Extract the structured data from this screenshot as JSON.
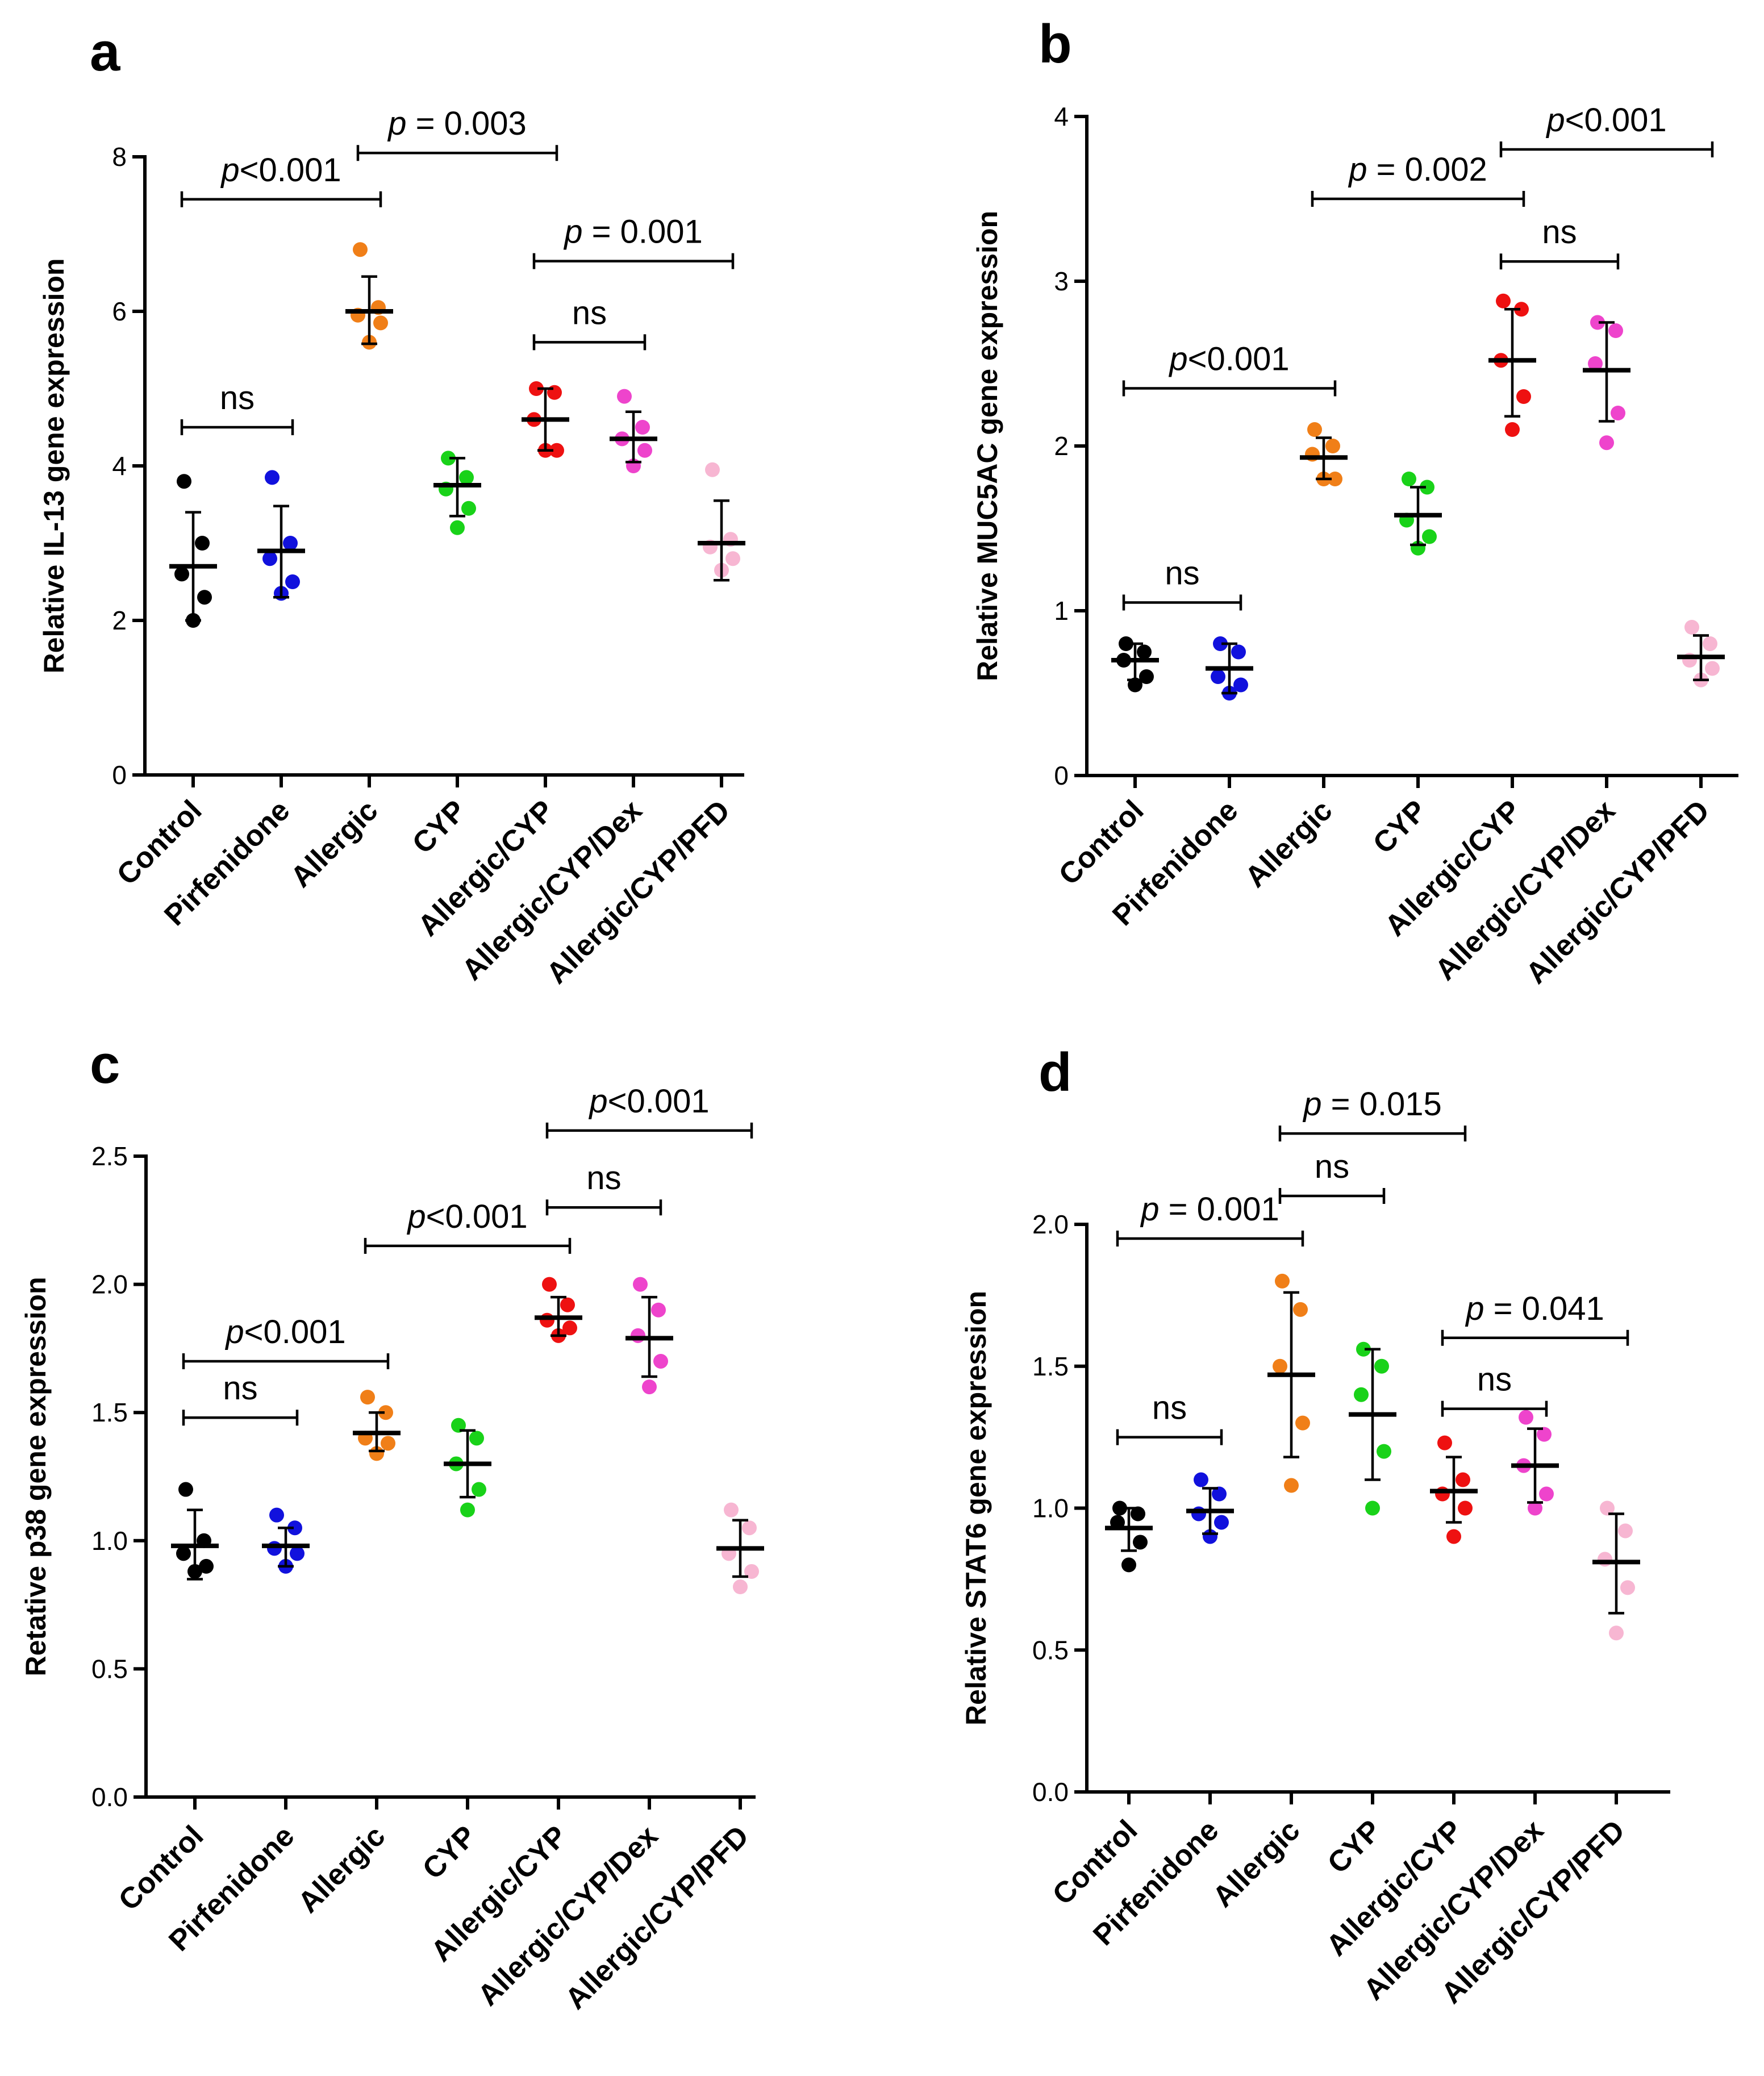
{
  "categories": [
    "Control",
    "Pirfenidone",
    "Allergic",
    "CYP",
    "Allergic/CYP",
    "Allergic/CYP/Dex",
    "Allergic/CYP/PFD"
  ],
  "group_colors": [
    "#000000",
    "#1111dd",
    "#f07f18",
    "#19d219",
    "#ee1111",
    "#ee44cc",
    "#f7b6d2"
  ],
  "chart_data": [
    {
      "type": "scatter",
      "panel": "a",
      "ylabel": "Relative IL-13 gene expression",
      "ylim": [
        0,
        8
      ],
      "yticks": [
        0,
        2,
        4,
        6,
        8
      ],
      "ytick_labels": [
        "0",
        "2",
        "4",
        "6",
        "8"
      ],
      "categories": [
        "Control",
        "Pirfenidone",
        "Allergic",
        "CYP",
        "Allergic/CYP",
        "Allergic/CYP/Dex",
        "Allergic/CYP/PFD"
      ],
      "groups": [
        {
          "points": [
            3.8,
            3.0,
            2.6,
            2.3,
            2.0
          ],
          "mean": 2.7,
          "sd_low": 2.0,
          "sd_high": 3.4
        },
        {
          "points": [
            3.85,
            3.0,
            2.8,
            2.5,
            2.35
          ],
          "mean": 2.9,
          "sd_low": 2.3,
          "sd_high": 3.48
        },
        {
          "points": [
            6.8,
            6.05,
            5.95,
            5.85,
            5.6
          ],
          "mean": 6.0,
          "sd_low": 5.58,
          "sd_high": 6.45
        },
        {
          "points": [
            4.1,
            3.85,
            3.7,
            3.45,
            3.2
          ],
          "mean": 3.75,
          "sd_low": 3.35,
          "sd_high": 4.1
        },
        {
          "points": [
            5.0,
            4.95,
            4.6,
            4.2,
            4.2
          ],
          "mean": 4.6,
          "sd_low": 4.2,
          "sd_high": 5.0
        },
        {
          "points": [
            4.9,
            4.5,
            4.35,
            4.2,
            4.0
          ],
          "mean": 4.35,
          "sd_low": 4.05,
          "sd_high": 4.7
        },
        {
          "points": [
            3.95,
            3.05,
            2.95,
            2.8,
            2.65
          ],
          "mean": 3.0,
          "sd_low": 2.52,
          "sd_high": 3.55
        }
      ],
      "annotations": [
        {
          "from": 0,
          "to": 2,
          "y": 7.45,
          "prefix": "p",
          "text": "<0.001"
        },
        {
          "from": 2,
          "to": 4,
          "y": 8.05,
          "prefix": "p",
          "text": " = 0.003"
        },
        {
          "from": 0,
          "to": 1,
          "y": 4.5,
          "prefix": "",
          "text": "ns"
        },
        {
          "from": 4,
          "to": 6,
          "y": 6.65,
          "prefix": "p",
          "text": " = 0.001"
        },
        {
          "from": 4,
          "to": 5,
          "y": 5.6,
          "prefix": "",
          "text": "ns"
        }
      ]
    },
    {
      "type": "scatter",
      "panel": "b",
      "ylabel": "Relative MUC5AC gene expression",
      "ylim": [
        0,
        4
      ],
      "yticks": [
        0,
        1,
        2,
        3,
        4
      ],
      "ytick_labels": [
        "0",
        "1",
        "2",
        "3",
        "4"
      ],
      "categories": [
        "Control",
        "Pirfenidone",
        "Allergic",
        "CYP",
        "Allergic/CYP",
        "Allergic/CYP/Dex",
        "Allergic/CYP/PFD"
      ],
      "groups": [
        {
          "points": [
            0.8,
            0.75,
            0.7,
            0.6,
            0.55
          ],
          "mean": 0.7,
          "sd_low": 0.58,
          "sd_high": 0.8
        },
        {
          "points": [
            0.8,
            0.75,
            0.6,
            0.55,
            0.5
          ],
          "mean": 0.65,
          "sd_low": 0.5,
          "sd_high": 0.8
        },
        {
          "points": [
            2.1,
            2.0,
            1.95,
            1.8,
            1.8
          ],
          "mean": 1.93,
          "sd_low": 1.8,
          "sd_high": 2.05
        },
        {
          "points": [
            1.8,
            1.75,
            1.55,
            1.45,
            1.38
          ],
          "mean": 1.58,
          "sd_low": 1.4,
          "sd_high": 1.75
        },
        {
          "points": [
            2.88,
            2.83,
            2.52,
            2.3,
            2.1
          ],
          "mean": 2.52,
          "sd_low": 2.18,
          "sd_high": 2.83
        },
        {
          "points": [
            2.75,
            2.7,
            2.5,
            2.2,
            2.02
          ],
          "mean": 2.46,
          "sd_low": 2.15,
          "sd_high": 2.75
        },
        {
          "points": [
            0.9,
            0.8,
            0.7,
            0.65,
            0.58
          ],
          "mean": 0.72,
          "sd_low": 0.58,
          "sd_high": 0.85
        }
      ],
      "annotations": [
        {
          "from": 0,
          "to": 2,
          "y": 2.35,
          "prefix": "p",
          "text": "<0.001"
        },
        {
          "from": 0,
          "to": 1,
          "y": 1.05,
          "prefix": "",
          "text": "ns"
        },
        {
          "from": 2,
          "to": 4,
          "y": 3.5,
          "prefix": "p",
          "text": " = 0.002"
        },
        {
          "from": 4,
          "to": 5,
          "y": 3.12,
          "prefix": "",
          "text": "ns"
        },
        {
          "from": 4,
          "to": 6,
          "y": 3.8,
          "prefix": "p",
          "text": "<0.001"
        }
      ]
    },
    {
      "type": "scatter",
      "panel": "c",
      "ylabel": "Retative p38 gene expression",
      "ylim": [
        0,
        2.5
      ],
      "yticks": [
        0,
        0.5,
        1,
        1.5,
        2,
        2.5
      ],
      "ytick_labels": [
        "0.0",
        "0.5",
        "1.0",
        "1.5",
        "2.0",
        "2.5"
      ],
      "categories": [
        "Control",
        "Pirfenidone",
        "Allergic",
        "CYP",
        "Allergic/CYP",
        "Allergic/CYP/Dex",
        "Allergic/CYP/PFD"
      ],
      "groups": [
        {
          "points": [
            1.2,
            1.0,
            0.95,
            0.9,
            0.88
          ],
          "mean": 0.98,
          "sd_low": 0.85,
          "sd_high": 1.12
        },
        {
          "points": [
            1.1,
            1.05,
            0.97,
            0.95,
            0.9
          ],
          "mean": 0.98,
          "sd_low": 0.9,
          "sd_high": 1.05
        },
        {
          "points": [
            1.56,
            1.5,
            1.4,
            1.38,
            1.34
          ],
          "mean": 1.42,
          "sd_low": 1.35,
          "sd_high": 1.5
        },
        {
          "points": [
            1.45,
            1.4,
            1.3,
            1.2,
            1.12
          ],
          "mean": 1.3,
          "sd_low": 1.17,
          "sd_high": 1.43
        },
        {
          "points": [
            2.0,
            1.92,
            1.86,
            1.83,
            1.8
          ],
          "mean": 1.87,
          "sd_low": 1.8,
          "sd_high": 1.95
        },
        {
          "points": [
            2.0,
            1.9,
            1.8,
            1.7,
            1.6
          ],
          "mean": 1.79,
          "sd_low": 1.64,
          "sd_high": 1.95
        },
        {
          "points": [
            1.12,
            1.05,
            0.95,
            0.88,
            0.82
          ],
          "mean": 0.97,
          "sd_low": 0.86,
          "sd_high": 1.08
        }
      ],
      "annotations": [
        {
          "from": 0,
          "to": 2,
          "y": 1.7,
          "prefix": "p",
          "text": "<0.001"
        },
        {
          "from": 0,
          "to": 1,
          "y": 1.48,
          "prefix": "",
          "text": "ns"
        },
        {
          "from": 2,
          "to": 4,
          "y": 2.15,
          "prefix": "p",
          "text": "<0.001"
        },
        {
          "from": 4,
          "to": 5,
          "y": 2.3,
          "prefix": "",
          "text": "ns"
        },
        {
          "from": 4,
          "to": 6,
          "y": 2.6,
          "prefix": "p",
          "text": "<0.001"
        }
      ]
    },
    {
      "type": "scatter",
      "panel": "d",
      "ylabel": "Relative STAT6 gene expression",
      "ylim": [
        0,
        2
      ],
      "yticks": [
        0,
        0.5,
        1,
        1.5,
        2
      ],
      "ytick_labels": [
        "0.0",
        "0.5",
        "1.0",
        "1.5",
        "2.0"
      ],
      "categories": [
        "Control",
        "Pirfenidone",
        "Allergic",
        "CYP",
        "Allergic/CYP",
        "Allergic/CYP/Dex",
        "Allergic/CYP/PFD"
      ],
      "groups": [
        {
          "points": [
            1.0,
            0.98,
            0.95,
            0.88,
            0.8
          ],
          "mean": 0.93,
          "sd_low": 0.85,
          "sd_high": 1.0
        },
        {
          "points": [
            1.1,
            1.05,
            0.98,
            0.95,
            0.9
          ],
          "mean": 0.99,
          "sd_low": 0.91,
          "sd_high": 1.07
        },
        {
          "points": [
            1.8,
            1.7,
            1.5,
            1.3,
            1.08
          ],
          "mean": 1.47,
          "sd_low": 1.18,
          "sd_high": 1.76
        },
        {
          "points": [
            1.56,
            1.5,
            1.4,
            1.2,
            1.0
          ],
          "mean": 1.33,
          "sd_low": 1.1,
          "sd_high": 1.56
        },
        {
          "points": [
            1.23,
            1.1,
            1.05,
            1.0,
            0.9
          ],
          "mean": 1.06,
          "sd_low": 0.95,
          "sd_high": 1.18
        },
        {
          "points": [
            1.32,
            1.26,
            1.15,
            1.05,
            1.0
          ],
          "mean": 1.15,
          "sd_low": 1.02,
          "sd_high": 1.28
        },
        {
          "points": [
            1.0,
            0.92,
            0.82,
            0.72,
            0.56
          ],
          "mean": 0.81,
          "sd_low": 0.63,
          "sd_high": 0.98
        }
      ],
      "annotations": [
        {
          "from": 0,
          "to": 2,
          "y": 1.95,
          "prefix": "p",
          "text": " = 0.001"
        },
        {
          "from": 2,
          "to": 3,
          "y": 2.1,
          "prefix": "",
          "text": "ns"
        },
        {
          "from": 2,
          "to": 4,
          "y": 2.32,
          "prefix": "p",
          "text": " = 0.015"
        },
        {
          "from": 0,
          "to": 1,
          "y": 1.25,
          "prefix": "",
          "text": "ns"
        },
        {
          "from": 4,
          "to": 5,
          "y": 1.35,
          "prefix": "",
          "text": "ns"
        },
        {
          "from": 4,
          "to": 6,
          "y": 1.6,
          "prefix": "p",
          "text": " = 0.041"
        }
      ]
    }
  ]
}
